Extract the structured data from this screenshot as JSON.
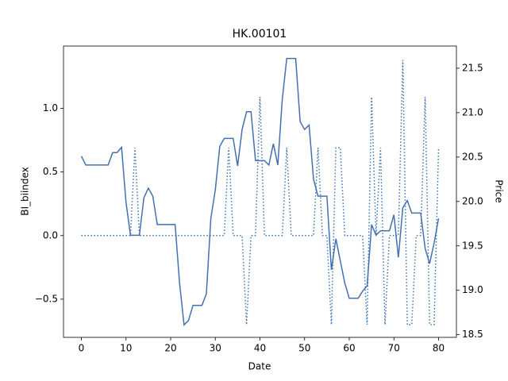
{
  "chart_data": {
    "type": "line",
    "title": "HK.00101",
    "xlabel": "Date",
    "ylabel": "BI_biindex",
    "y2label": "Price",
    "x": [
      0,
      1,
      2,
      3,
      4,
      5,
      6,
      7,
      8,
      9,
      10,
      11,
      12,
      13,
      14,
      15,
      16,
      17,
      18,
      19,
      20,
      21,
      22,
      23,
      24,
      25,
      26,
      27,
      28,
      29,
      30,
      31,
      32,
      33,
      34,
      35,
      36,
      37,
      38,
      39,
      40,
      41,
      42,
      43,
      44,
      45,
      46,
      47,
      48,
      49,
      50,
      51,
      52,
      53,
      54,
      55,
      56,
      57,
      58,
      59,
      60,
      61,
      62,
      63,
      64,
      65,
      66,
      67,
      68,
      69,
      70,
      71,
      72,
      73,
      74,
      75,
      76,
      77,
      78,
      79,
      80
    ],
    "series": [
      {
        "color": "#3b75af",
        "linestyle": "dotted",
        "values": [
          0,
          0,
          0,
          0,
          0,
          0,
          0,
          0,
          0,
          0,
          0,
          0,
          0.69,
          0,
          0,
          0,
          0,
          0,
          0,
          0,
          0,
          0,
          0,
          0,
          0,
          0,
          0,
          0,
          0,
          0,
          0,
          0,
          0,
          0.69,
          0,
          0,
          0,
          -0.7,
          0,
          0,
          1.09,
          0,
          0,
          0,
          0,
          0,
          0.69,
          0,
          0,
          0,
          0,
          0,
          0,
          0.69,
          0,
          0,
          -0.7,
          0.69,
          0.69,
          0,
          0,
          0,
          0,
          0,
          -0.7,
          1.09,
          0,
          0.69,
          -0.7,
          0,
          0,
          0,
          1.38,
          -0.7,
          -0.7,
          0,
          0,
          1.09,
          -0.7,
          -0.7,
          0.68
        ]
      },
      {
        "color": "#4470b0",
        "linestyle": "solid",
        "axis": "y2",
        "values": [
          20.51,
          20.41,
          20.41,
          20.41,
          20.41,
          20.41,
          20.41,
          20.55,
          20.55,
          20.61,
          19.99,
          19.62,
          19.62,
          19.62,
          20.04,
          20.15,
          20.06,
          19.74,
          19.74,
          19.74,
          19.74,
          19.74,
          19.08,
          18.61,
          18.66,
          18.83,
          18.83,
          18.83,
          18.96,
          19.81,
          20.13,
          20.62,
          20.71,
          20.71,
          20.71,
          20.4,
          20.81,
          21.01,
          21.01,
          20.46,
          20.46,
          20.46,
          20.41,
          20.65,
          20.41,
          21.15,
          21.61,
          21.61,
          21.61,
          20.9,
          20.81,
          20.86,
          20.25,
          20.06,
          20.06,
          20.06,
          19.23,
          19.58,
          19.33,
          19.08,
          18.91,
          18.91,
          18.91,
          18.99,
          19.05,
          19.74,
          19.62,
          19.67,
          19.67,
          19.67,
          19.85,
          19.37,
          19.93,
          20.01,
          19.87,
          19.87,
          19.87,
          19.47,
          19.3,
          19.53,
          19.81
        ]
      }
    ],
    "xlim": [
      -4,
      84
    ],
    "xticks": [
      0,
      10,
      20,
      30,
      40,
      50,
      60,
      70,
      80
    ],
    "ylim": [
      -0.8,
      1.49
    ],
    "yticks": [
      {
        "value": -0.5,
        "label": "−0.5"
      },
      {
        "value": 0,
        "label": "0.0"
      },
      0.5,
      {
        "value": 1,
        "label": "1.0"
      }
    ],
    "y2lim": [
      18.47,
      21.75
    ],
    "y2ticks": [
      18.5,
      {
        "value": 19,
        "label": "19.0"
      },
      19.5,
      {
        "value": 20,
        "label": "20.0"
      },
      20.5,
      {
        "value": 21,
        "label": "21.0"
      },
      21.5
    ]
  }
}
